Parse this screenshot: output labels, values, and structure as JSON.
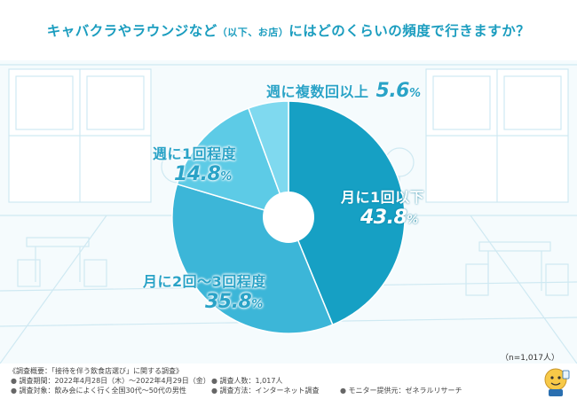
{
  "header": {
    "title_main": "キャバクラやラウンジなど",
    "title_paren": "（以下、お店）",
    "title_tail": "にはどのくらいの頻度で行きますか？"
  },
  "chart_data": {
    "type": "pie",
    "donut": true,
    "slices": [
      {
        "label": "月に1回以下",
        "value": 43.8,
        "value_text": "43.8",
        "color": "#16a0c4"
      },
      {
        "label": "月に2回〜3回程度",
        "value": 35.8,
        "value_text": "35.8",
        "color": "#3cb6d8"
      },
      {
        "label": "週に1回程度",
        "value": 14.8,
        "value_text": "14.8",
        "color": "#5dcbe6"
      },
      {
        "label": "週に複数回以上",
        "value": 5.6,
        "value_text": "5.6",
        "color": "#7fd9ef"
      }
    ],
    "unit": "%",
    "n_note": "（n=1,017人）"
  },
  "footer": {
    "survey_title": "《調査概要：「接待を伴う飲食店選び」に関する調査》",
    "period": "調査期間：2022年4月28日（木）〜2022年4月29日（金）",
    "target": "調査対象：飲み会によく行く全国30代〜50代の男性",
    "count": "調査人数：1,017人",
    "method": "調査方法：インターネット調査",
    "provider": "モニター提供元：ゼネラルリサーチ",
    "bullet": "●"
  },
  "colors": {
    "title": "#1b9dbf",
    "label_blue": "#2aa3c7",
    "slice_1": "#16a0c4",
    "slice_2": "#3cb6d8",
    "slice_3": "#5dcbe6",
    "slice_4": "#7fd9ef"
  }
}
